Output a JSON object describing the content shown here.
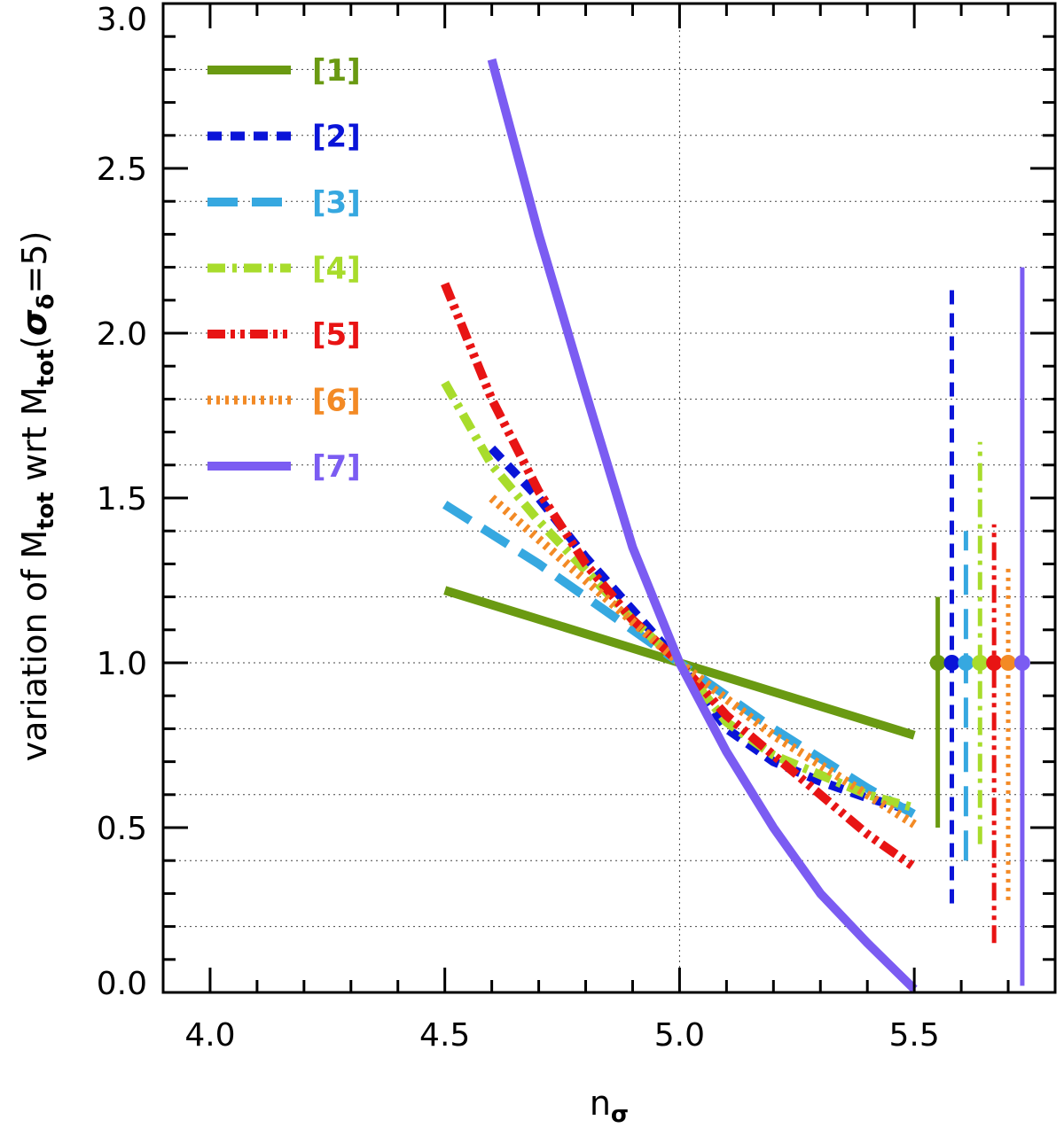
{
  "chart_data": {
    "type": "line",
    "title": "",
    "xlabel": "nσ",
    "xlabel_main": "n",
    "xlabel_sub": "σ",
    "ylabel": "variation of Mₜₒₜ wrt Mₜₒₜ(σδ=5)",
    "ylabel_parts": {
      "prefix": "variation of M",
      "sub1": "tot",
      "middle": " wrt M",
      "sub2": "tot",
      "paren_open": "(",
      "sigma": "σ",
      "sigma_sub": "δ",
      "suffix": "=5)"
    },
    "xlim": [
      3.9,
      5.8
    ],
    "ylim": [
      0.0,
      3.0
    ],
    "xticks": [
      4.0,
      4.5,
      5.0,
      5.5
    ],
    "xtick_labels": [
      "4.0",
      "4.5",
      "5.0",
      "5.5"
    ],
    "xminor": [
      4.1,
      4.2,
      4.3,
      4.4,
      4.6,
      4.7,
      4.8,
      4.9,
      5.1,
      5.2,
      5.3,
      5.4,
      5.6,
      5.7
    ],
    "yticks": [
      0.0,
      0.5,
      1.0,
      1.5,
      2.0,
      2.5,
      3.0
    ],
    "ytick_labels": [
      "0.0",
      "0.5",
      "1.0",
      "1.5",
      "2.0",
      "2.5",
      "3.0"
    ],
    "yminor": [
      0.1,
      0.2,
      0.3,
      0.4,
      0.6,
      0.7,
      0.8,
      0.9,
      1.1,
      1.2,
      1.3,
      1.4,
      1.6,
      1.7,
      1.8,
      1.9,
      2.1,
      2.2,
      2.3,
      2.4,
      2.6,
      2.7,
      2.8,
      2.9
    ],
    "grid_y": [
      0.2,
      0.4,
      0.6,
      0.8,
      1.0,
      1.2,
      1.4,
      1.6,
      1.8,
      2.0,
      2.2,
      2.4,
      2.6,
      2.8
    ],
    "grid_x": [
      5.0
    ],
    "legend_position": "top-left",
    "series": [
      {
        "name": "[1]",
        "color": "#6a9a12",
        "style": "solid",
        "x": [
          4.5,
          5.0,
          5.5
        ],
        "y": [
          1.22,
          1.0,
          0.78
        ],
        "errorbar": {
          "x": 5.55,
          "y": 1.0,
          "low": 0.5,
          "high": 1.2
        }
      },
      {
        "name": "[2]",
        "color": "#0a14d8",
        "style": "dash",
        "x": [
          4.6,
          4.7,
          4.8,
          4.9,
          5.0,
          5.1,
          5.2,
          5.3,
          5.4,
          5.5
        ],
        "y": [
          1.65,
          1.5,
          1.32,
          1.16,
          1.0,
          0.8,
          0.7,
          0.64,
          0.59,
          0.55
        ],
        "errorbar": {
          "x": 5.58,
          "y": 1.0,
          "low": 0.27,
          "high": 2.15
        }
      },
      {
        "name": "[3]",
        "color": "#36a8e0",
        "style": "longdash",
        "x": [
          4.5,
          4.7,
          4.9,
          5.0,
          5.2,
          5.4,
          5.5
        ],
        "y": [
          1.48,
          1.3,
          1.1,
          1.0,
          0.8,
          0.62,
          0.54
        ],
        "errorbar": {
          "x": 5.61,
          "y": 1.0,
          "low": 0.4,
          "high": 1.4
        }
      },
      {
        "name": "[4]",
        "color": "#a8dc2c",
        "style": "dashdot",
        "x": [
          4.5,
          4.6,
          4.7,
          4.8,
          4.9,
          5.0,
          5.1,
          5.2,
          5.3,
          5.4,
          5.5
        ],
        "y": [
          1.85,
          1.6,
          1.43,
          1.28,
          1.13,
          1.0,
          0.82,
          0.72,
          0.66,
          0.6,
          0.56
        ],
        "errorbar": {
          "x": 5.64,
          "y": 1.0,
          "low": 0.45,
          "high": 1.67
        }
      },
      {
        "name": "[5]",
        "color": "#e81414",
        "style": "dashdotdot",
        "x": [
          4.5,
          4.6,
          4.7,
          4.8,
          4.9,
          5.0,
          5.1,
          5.2,
          5.3,
          5.4,
          5.5
        ],
        "y": [
          2.15,
          1.8,
          1.52,
          1.3,
          1.13,
          1.0,
          0.84,
          0.72,
          0.6,
          0.48,
          0.38
        ],
        "errorbar": {
          "x": 5.67,
          "y": 1.0,
          "low": 0.15,
          "high": 1.42
        }
      },
      {
        "name": "[6]",
        "color": "#f38a25",
        "style": "dot",
        "x": [
          4.6,
          4.8,
          5.0,
          5.2,
          5.4,
          5.5
        ],
        "y": [
          1.5,
          1.25,
          1.0,
          0.78,
          0.6,
          0.51
        ],
        "errorbar": {
          "x": 5.7,
          "y": 1.0,
          "low": 0.28,
          "high": 1.3
        }
      },
      {
        "name": "[7]",
        "color": "#7b5cf2",
        "style": "solid",
        "x": [
          4.6,
          4.7,
          4.8,
          4.9,
          5.0,
          5.1,
          5.2,
          5.3,
          5.4,
          5.5
        ],
        "y": [
          2.83,
          2.3,
          1.82,
          1.35,
          1.0,
          0.73,
          0.5,
          0.3,
          0.15,
          0.01
        ],
        "errorbar": {
          "x": 5.73,
          "y": 1.0,
          "low": 0.02,
          "high": 2.2
        }
      }
    ]
  }
}
